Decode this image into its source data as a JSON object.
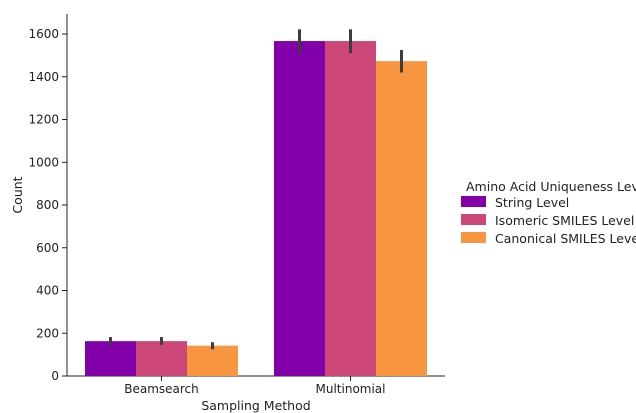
{
  "chart_data": {
    "type": "bar",
    "title": "",
    "xlabel": "Sampling Method",
    "ylabel": "Count",
    "categories": [
      "Beamsearch",
      "Multinomial"
    ],
    "ylim": [
      0,
      1700
    ],
    "yticks": [
      0,
      200,
      400,
      600,
      800,
      1000,
      1200,
      1400,
      1600
    ],
    "grid": false,
    "legend": {
      "title": "Amino Acid Uniqueness Level",
      "placement": "right"
    },
    "series": [
      {
        "name": "String Level",
        "color": "#8200aa",
        "values": [
          163,
          1567
        ],
        "error_low": [
          146,
          1510
        ],
        "error_high": [
          182,
          1622
        ]
      },
      {
        "name": "Isomeric SMILES Level",
        "color": "#cc4778",
        "values": [
          163,
          1567
        ],
        "error_low": [
          146,
          1510
        ],
        "error_high": [
          182,
          1622
        ]
      },
      {
        "name": "Canonical SMILES Level",
        "color": "#f89540",
        "values": [
          142,
          1473
        ],
        "error_low": [
          125,
          1420
        ],
        "error_high": [
          158,
          1525
        ]
      }
    ]
  }
}
